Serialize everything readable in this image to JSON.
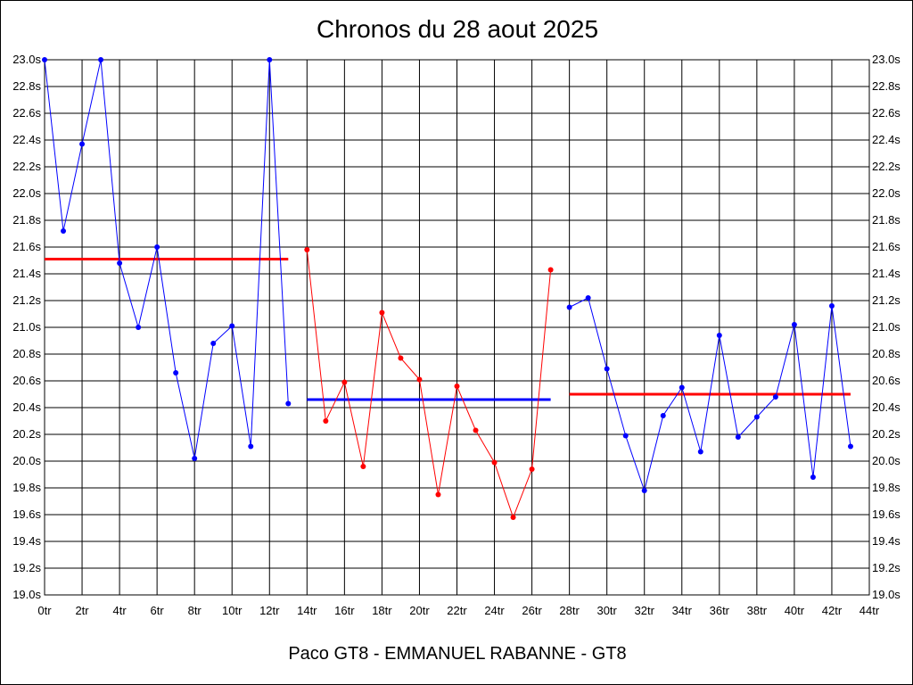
{
  "chart_data": {
    "type": "line",
    "title": "Chronos du 28 aout 2025",
    "footer": "Paco GT8 - EMMANUEL RABANNE - GT8",
    "xlabel": "",
    "ylabel": "",
    "xlim": [
      0,
      44
    ],
    "ylim": [
      19.0,
      23.0
    ],
    "y_ticks": [
      "19.0s",
      "19.2s",
      "19.4s",
      "19.6s",
      "19.8s",
      "20.0s",
      "20.2s",
      "20.4s",
      "20.6s",
      "20.8s",
      "21.0s",
      "21.2s",
      "21.4s",
      "21.6s",
      "21.8s",
      "22.0s",
      "22.2s",
      "22.4s",
      "22.6s",
      "22.8s",
      "23.0s"
    ],
    "x_ticks": [
      "0tr",
      "2tr",
      "4tr",
      "6tr",
      "8tr",
      "10tr",
      "12tr",
      "14tr",
      "16tr",
      "18tr",
      "20tr",
      "22tr",
      "24tr",
      "26tr",
      "28tr",
      "30tr",
      "32tr",
      "34tr",
      "36tr",
      "38tr",
      "40tr",
      "42tr",
      "44tr"
    ],
    "grid": true,
    "colors": {
      "blue": "#0000ff",
      "red": "#ff0000",
      "grid": "#000000"
    },
    "series": [
      {
        "color": "#0000ff",
        "x": [
          0,
          1,
          2,
          3,
          4,
          5,
          6,
          7,
          8,
          9,
          10,
          11,
          12,
          13
        ],
        "y": [
          23.0,
          21.72,
          22.37,
          23.0,
          21.48,
          21.0,
          21.6,
          20.66,
          20.02,
          20.88,
          21.01,
          20.11,
          23.0,
          20.43
        ]
      },
      {
        "color": "#ff0000",
        "x": [
          14,
          15,
          16,
          17,
          18,
          19,
          20,
          21,
          22,
          23,
          24,
          25,
          26,
          27
        ],
        "y": [
          21.58,
          20.3,
          20.59,
          19.96,
          21.11,
          20.77,
          20.61,
          19.75,
          20.56,
          20.23,
          19.99,
          19.58,
          19.94,
          21.43
        ]
      },
      {
        "color": "#0000ff",
        "x": [
          28,
          29,
          30,
          31,
          32,
          33,
          34,
          35,
          36,
          37,
          38,
          39,
          40,
          41,
          42,
          43
        ],
        "y": [
          21.15,
          21.22,
          20.69,
          20.19,
          19.78,
          20.34,
          20.55,
          20.07,
          20.94,
          20.18,
          20.33,
          20.48,
          21.02,
          19.88,
          21.16,
          20.11
        ]
      }
    ],
    "averages": [
      {
        "color": "#ff0000",
        "x_start": 0,
        "x_end": 13,
        "y": 21.51
      },
      {
        "color": "#0000ff",
        "x_start": 14,
        "x_end": 27,
        "y": 20.46
      },
      {
        "color": "#ff0000",
        "x_start": 28,
        "x_end": 43,
        "y": 20.5
      }
    ]
  }
}
